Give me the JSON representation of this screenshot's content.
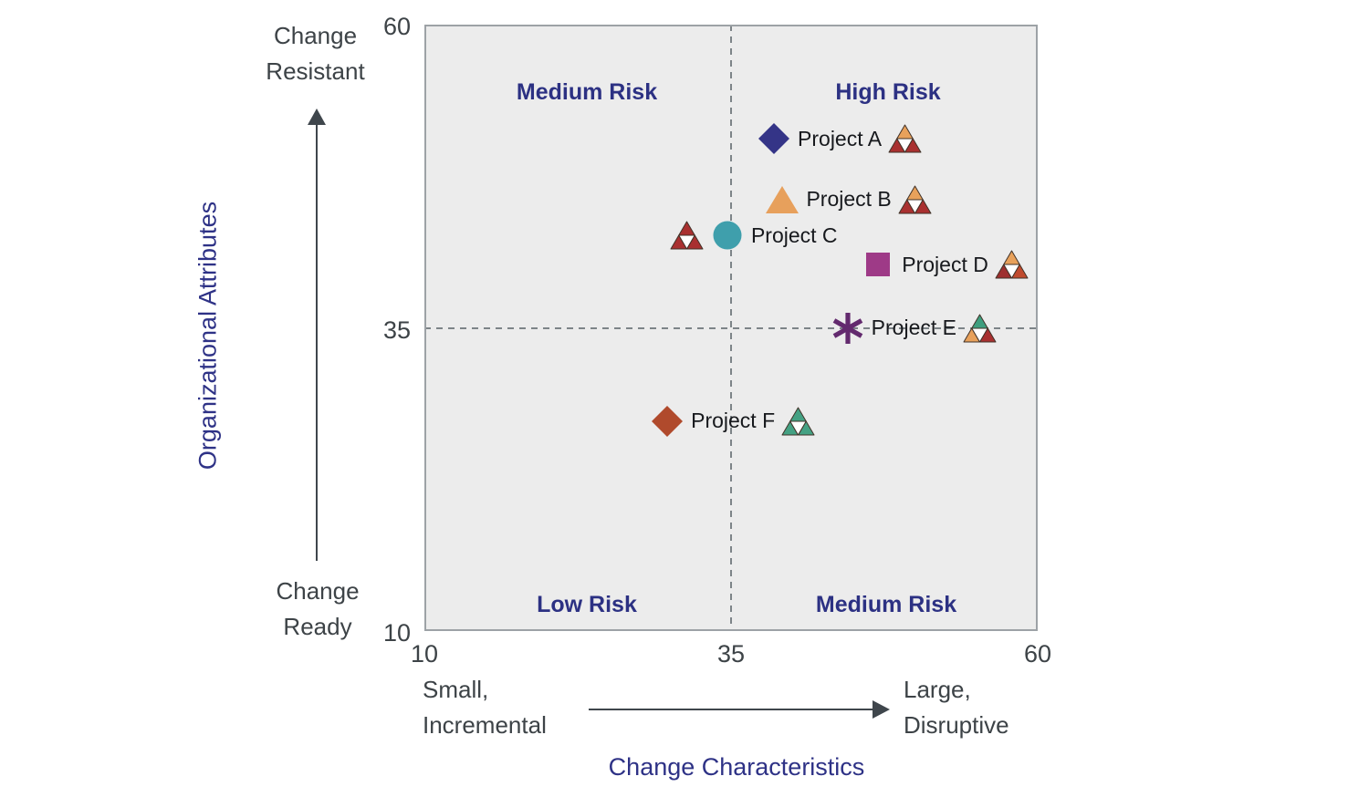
{
  "chart_data": {
    "type": "scatter",
    "x_axis": {
      "label": "Change Characteristics",
      "min": 10,
      "max": 60,
      "ticks": [
        "10",
        "35",
        "60"
      ],
      "low_label": [
        "Small,",
        "Incremental"
      ],
      "high_label": [
        "Large,",
        "Disruptive"
      ]
    },
    "y_axis": {
      "label": "Organizational Attributes",
      "min": 10,
      "max": 60,
      "ticks": [
        "60",
        "35",
        "10"
      ],
      "low_label": [
        "Change",
        "Ready"
      ],
      "high_label": [
        "Change",
        "Resistant"
      ]
    },
    "reference_lines": {
      "x": 35,
      "y": 35
    },
    "quadrants": {
      "top_left": "Medium Risk",
      "top_right": "High Risk",
      "bottom_left": "Low Risk",
      "bottom_right": "Medium Risk"
    },
    "points": [
      {
        "label": "Project A",
        "x": 38.5,
        "y": 50.6,
        "marker": "diamond",
        "color": "#343487",
        "flag": {
          "placement": "after",
          "colors": [
            "#e8a15b",
            "#a93030",
            "#a93030"
          ]
        }
      },
      {
        "label": "Project B",
        "x": 39.2,
        "y": 45.6,
        "marker": "triangle",
        "color": "#e7a05c",
        "flag": {
          "placement": "after",
          "colors": [
            "#e8a15b",
            "#a93030",
            "#a93030"
          ]
        }
      },
      {
        "label": "Project C",
        "x": 34.7,
        "y": 42.6,
        "marker": "circle",
        "color": "#3f9fac",
        "flag": {
          "placement": "before",
          "colors": [
            "#a93030",
            "#a93030",
            "#a93030"
          ]
        }
      },
      {
        "label": "Project D",
        "x": 47.0,
        "y": 40.2,
        "marker": "square",
        "color": "#9e3a87",
        "flag": {
          "placement": "after",
          "colors": [
            "#e8a15b",
            "#9e2f2f",
            "#c04a2e"
          ]
        }
      },
      {
        "label": "Project E",
        "x": 44.5,
        "y": 35.0,
        "marker": "asterisk",
        "color": "#632a6e",
        "flag": {
          "placement": "after",
          "colors": [
            "#3f9e7e",
            "#e8a15b",
            "#a93030"
          ]
        }
      },
      {
        "label": "Project F",
        "x": 29.8,
        "y": 27.3,
        "marker": "diamond",
        "color": "#b04a2c",
        "flag": {
          "placement": "after",
          "colors": [
            "#44a183",
            "#44a183",
            "#44a183"
          ]
        }
      }
    ],
    "colors": {
      "plot_background": "#ececec",
      "plot_border": "#9da2a6",
      "dashed_line": "#7d8488",
      "quadrant_label": "#2c3183",
      "axis_title": "#2e3286",
      "axis_text": "#3d4347",
      "point_label": "#17191d",
      "arrow": "#3f464c",
      "flag_center": "#ffffff"
    }
  }
}
